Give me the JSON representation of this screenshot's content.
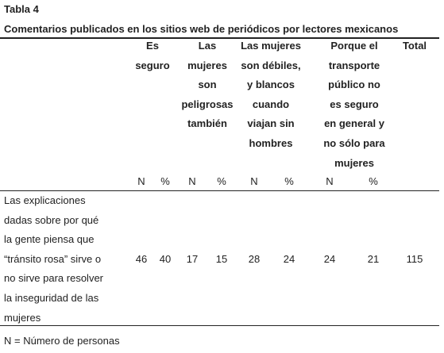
{
  "title": "Tabla 4",
  "caption": "Comentarios publicados en los sitios web de periódicos por lectores mexicanos",
  "table": {
    "column_groups": [
      {
        "label": [
          "Es",
          "seguro"
        ],
        "subheaders": [
          "N",
          "%"
        ]
      },
      {
        "label": [
          "Las",
          "mujeres",
          "son",
          "peligrosas",
          "también"
        ],
        "subheaders": [
          "N",
          "%"
        ]
      },
      {
        "label": [
          "Las mujeres",
          "son débiles,",
          "y blancos",
          "cuando",
          "viajan sin",
          "hombres"
        ],
        "subheaders": [
          "N",
          "%"
        ]
      },
      {
        "label": [
          "Porque el",
          "transporte",
          "público no",
          "es seguro",
          "en general y",
          "no sólo para",
          "mujeres"
        ],
        "subheaders": [
          "N",
          "%"
        ]
      }
    ],
    "total_header": "Total",
    "rows": [
      {
        "label": [
          "Las explicaciones",
          "dadas sobre por qué",
          "la gente piensa que",
          "“tránsito rosa” sirve o",
          "no sirve para resolver",
          "la inseguridad de las",
          "mujeres"
        ],
        "cells": [
          46,
          40,
          17,
          15,
          28,
          24,
          24,
          21,
          115
        ]
      }
    ]
  },
  "footnote": "N = Número de personas"
}
